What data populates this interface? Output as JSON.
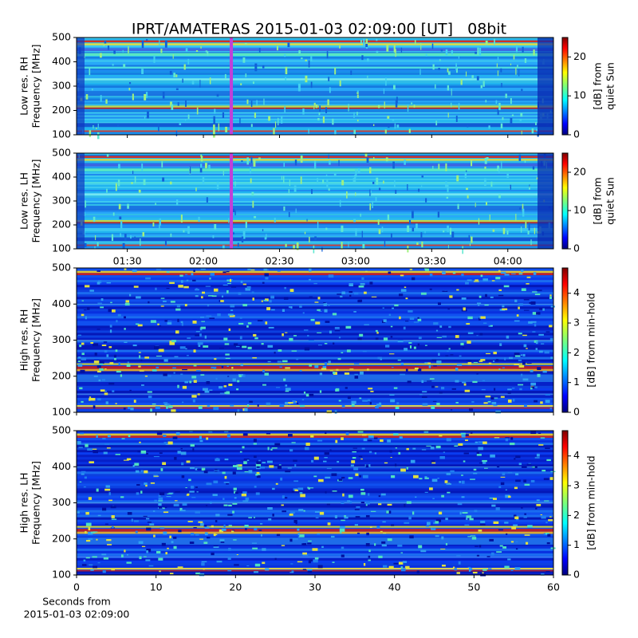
{
  "title": "IPRT/AMATERAS 2015-01-03 02:09:00 [UT]   08bit",
  "chart_data": [
    {
      "type": "heatmap",
      "colormap": "jet",
      "variant": "low",
      "ylabel": [
        "Low res. RH",
        "Frequency [MHz]"
      ],
      "ylim": [
        100,
        500
      ],
      "yticks": [
        100,
        200,
        300,
        400,
        500
      ],
      "xlim": [
        70,
        258
      ],
      "xticks": [
        {
          "value": 90,
          "label": null
        },
        {
          "value": 120,
          "label": null
        },
        {
          "value": 150,
          "label": null
        },
        {
          "value": 180,
          "label": null
        },
        {
          "value": 210,
          "label": null
        },
        {
          "value": 240,
          "label": null
        }
      ],
      "marker_x": 131,
      "marker_color": "#c040d8",
      "colorbar": {
        "label": [
          "[dB] from",
          "quiet Sun"
        ],
        "lim": [
          0,
          25
        ],
        "ticks": [
          0,
          10,
          20
        ]
      }
    },
    {
      "type": "heatmap",
      "colormap": "jet",
      "variant": "low",
      "ylabel": [
        "Low res. LH",
        "Frequency [MHz]"
      ],
      "ylim": [
        100,
        500
      ],
      "yticks": [
        100,
        200,
        300,
        400,
        500
      ],
      "xlim": [
        70,
        258
      ],
      "xticks": [
        {
          "value": 90,
          "label": "01:30"
        },
        {
          "value": 120,
          "label": "02:00"
        },
        {
          "value": 150,
          "label": "02:30"
        },
        {
          "value": 180,
          "label": "03:00"
        },
        {
          "value": 210,
          "label": "03:30"
        },
        {
          "value": 240,
          "label": "04:00"
        }
      ],
      "marker_x": 131,
      "marker_color": "#c040d8",
      "colorbar": {
        "label": [
          "[dB] from",
          "quiet Sun"
        ],
        "lim": [
          0,
          25
        ],
        "ticks": [
          0,
          10,
          20
        ]
      }
    },
    {
      "type": "heatmap",
      "colormap": "jet",
      "variant": "high",
      "ylabel": [
        "High res. RH",
        "Frequency [MHz]"
      ],
      "ylim": [
        100,
        500
      ],
      "yticks": [
        100,
        200,
        300,
        400,
        500
      ],
      "xlim": [
        0,
        60
      ],
      "xticks": [
        {
          "value": 0,
          "label": null
        },
        {
          "value": 10,
          "label": null
        },
        {
          "value": 20,
          "label": null
        },
        {
          "value": 30,
          "label": null
        },
        {
          "value": 40,
          "label": null
        },
        {
          "value": 50,
          "label": null
        },
        {
          "value": 60,
          "label": null
        }
      ],
      "colorbar": {
        "label": [
          "[dB] from min-hold"
        ],
        "lim": [
          0,
          4.85
        ],
        "ticks": [
          0,
          1,
          2,
          3,
          4
        ]
      }
    },
    {
      "type": "heatmap",
      "colormap": "jet",
      "variant": "high",
      "ylabel": [
        "High res. LH",
        "Frequency [MHz]"
      ],
      "ylim": [
        100,
        500
      ],
      "yticks": [
        100,
        200,
        300,
        400,
        500
      ],
      "xlim": [
        0,
        60
      ],
      "xticks": [
        0,
        10,
        20,
        30,
        40,
        50,
        60
      ],
      "xlabel": [
        "Seconds from",
        "2015-01-03 02:09:00"
      ],
      "colorbar": {
        "label": [
          "[dB] from min-hold"
        ],
        "lim": [
          0,
          4.85
        ],
        "ticks": [
          0,
          1,
          2,
          3,
          4
        ]
      }
    }
  ]
}
